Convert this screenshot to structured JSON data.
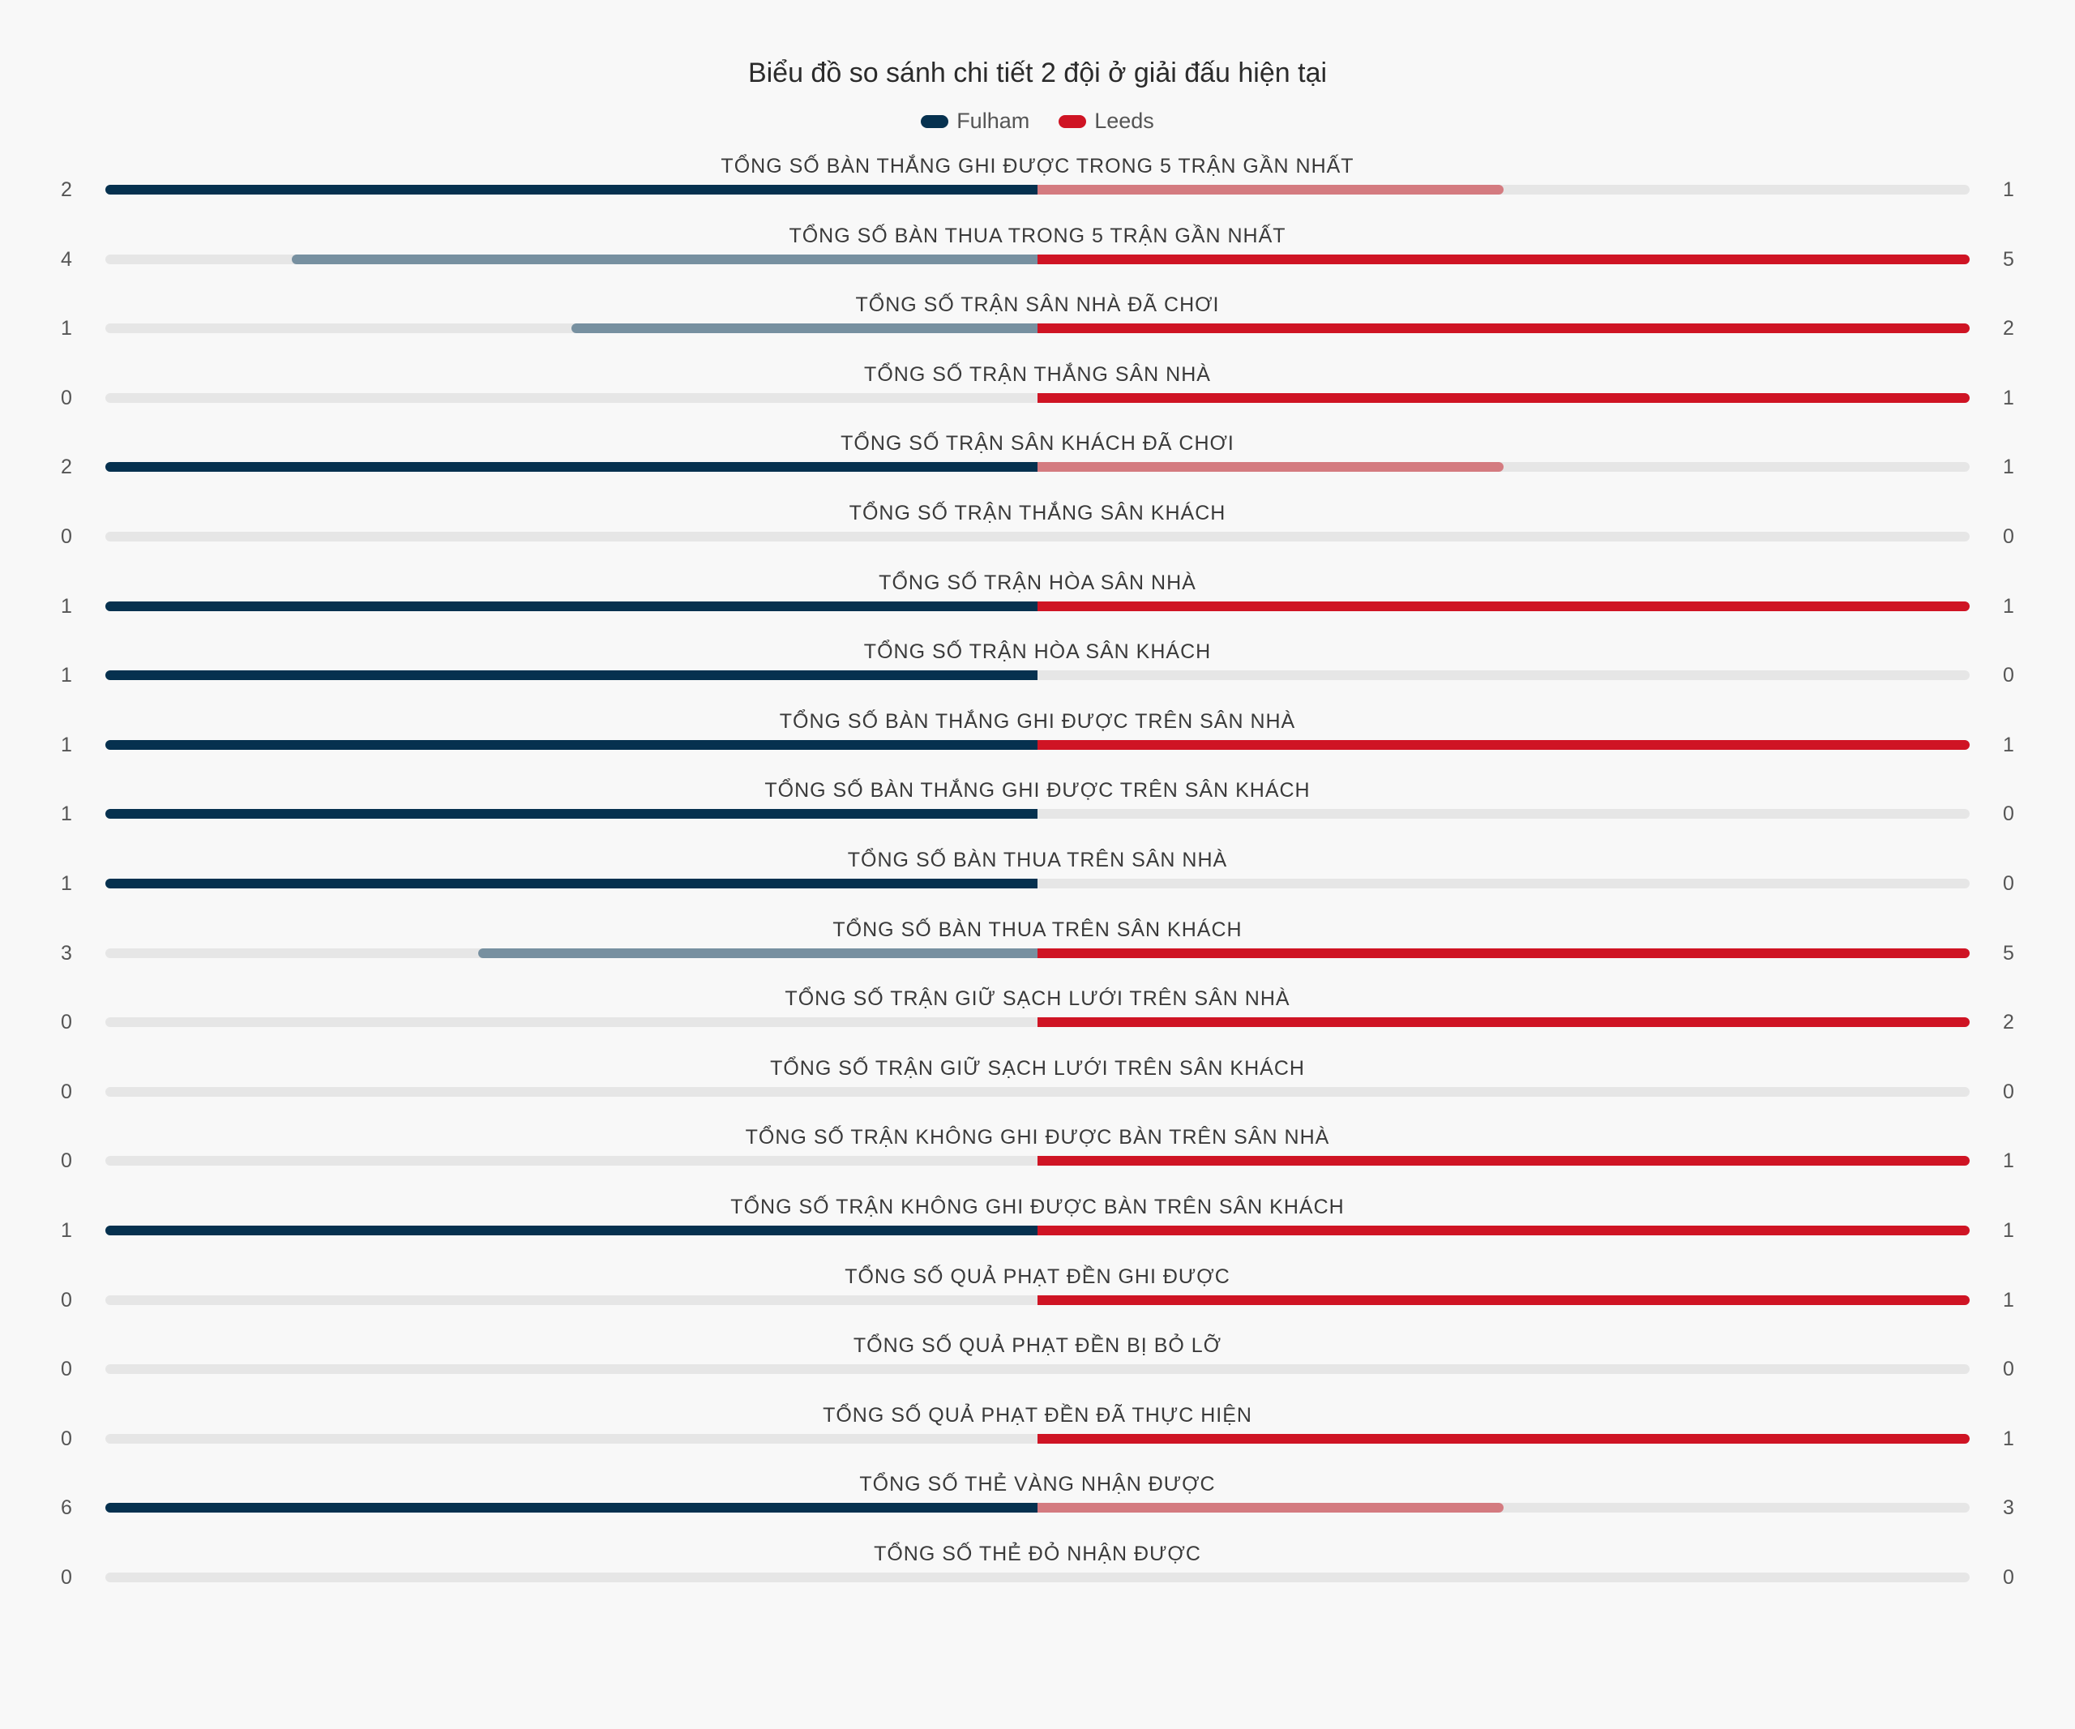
{
  "chart_data": {
    "type": "bar",
    "title": "Biểu đồ so sánh chi tiết 2 đội ở giải đấu hiện tại",
    "legend_position": "top",
    "series": [
      {
        "name": "Fulham",
        "color": "#06314f",
        "muted_color": "#7790a0"
      },
      {
        "name": "Leeds",
        "color": "#cf1424",
        "muted_color": "#d47b80"
      }
    ],
    "track_color": "#e6e6e6",
    "rows": [
      {
        "label": "TỔNG SỐ BÀN THẮNG GHI ĐƯỢC TRONG 5 TRẬN GẦN NHẤT",
        "left": 2,
        "right": 1
      },
      {
        "label": "TỔNG SỐ BÀN THUA TRONG 5 TRẬN GẦN NHẤT",
        "left": 4,
        "right": 5
      },
      {
        "label": "TỔNG SỐ TRẬN SÂN NHÀ ĐÃ CHƠI",
        "left": 1,
        "right": 2
      },
      {
        "label": "TỔNG SỐ TRẬN THẮNG SÂN NHÀ",
        "left": 0,
        "right": 1
      },
      {
        "label": "TỔNG SỐ TRẬN SÂN KHÁCH ĐÃ CHƠI",
        "left": 2,
        "right": 1
      },
      {
        "label": "TỔNG SỐ TRẬN THẮNG SÂN KHÁCH",
        "left": 0,
        "right": 0
      },
      {
        "label": "TỔNG SỐ TRẬN HÒA SÂN NHÀ",
        "left": 1,
        "right": 1
      },
      {
        "label": "TỔNG SỐ TRẬN HÒA SÂN KHÁCH",
        "left": 1,
        "right": 0
      },
      {
        "label": "TỔNG SỐ BÀN THẮNG GHI ĐƯỢC TRÊN SÂN NHÀ",
        "left": 1,
        "right": 1
      },
      {
        "label": "TỔNG SỐ BÀN THẮNG GHI ĐƯỢC TRÊN SÂN KHÁCH",
        "left": 1,
        "right": 0
      },
      {
        "label": "TỔNG SỐ BÀN THUA TRÊN SÂN NHÀ",
        "left": 1,
        "right": 0
      },
      {
        "label": "TỔNG SỐ BÀN THUA TRÊN SÂN KHÁCH",
        "left": 3,
        "right": 5
      },
      {
        "label": "TỔNG SỐ TRẬN GIỮ SẠCH LƯỚI TRÊN SÂN NHÀ",
        "left": 0,
        "right": 2
      },
      {
        "label": "TỔNG SỐ TRẬN GIỮ SẠCH LƯỚI TRÊN SÂN KHÁCH",
        "left": 0,
        "right": 0
      },
      {
        "label": "TỔNG SỐ TRẬN KHÔNG GHI ĐƯỢC BÀN TRÊN SÂN NHÀ",
        "left": 0,
        "right": 1
      },
      {
        "label": "TỔNG SỐ TRẬN KHÔNG GHI ĐƯỢC BÀN TRÊN SÂN KHÁCH",
        "left": 1,
        "right": 1
      },
      {
        "label": "TỔNG SỐ QUẢ PHẠT ĐỀN GHI ĐƯỢC",
        "left": 0,
        "right": 1
      },
      {
        "label": "TỔNG SỐ QUẢ PHẠT ĐỀN BỊ BỎ LỠ",
        "left": 0,
        "right": 0
      },
      {
        "label": "TỔNG SỐ QUẢ PHẠT ĐỀN ĐÃ THỰC HIỆN",
        "left": 0,
        "right": 1
      },
      {
        "label": "TỔNG SỐ THẺ VÀNG NHẬN ĐƯỢC",
        "left": 6,
        "right": 3
      },
      {
        "label": "TỔNG SỐ THẺ ĐỎ NHẬN ĐƯỢC",
        "left": 0,
        "right": 0
      }
    ]
  }
}
